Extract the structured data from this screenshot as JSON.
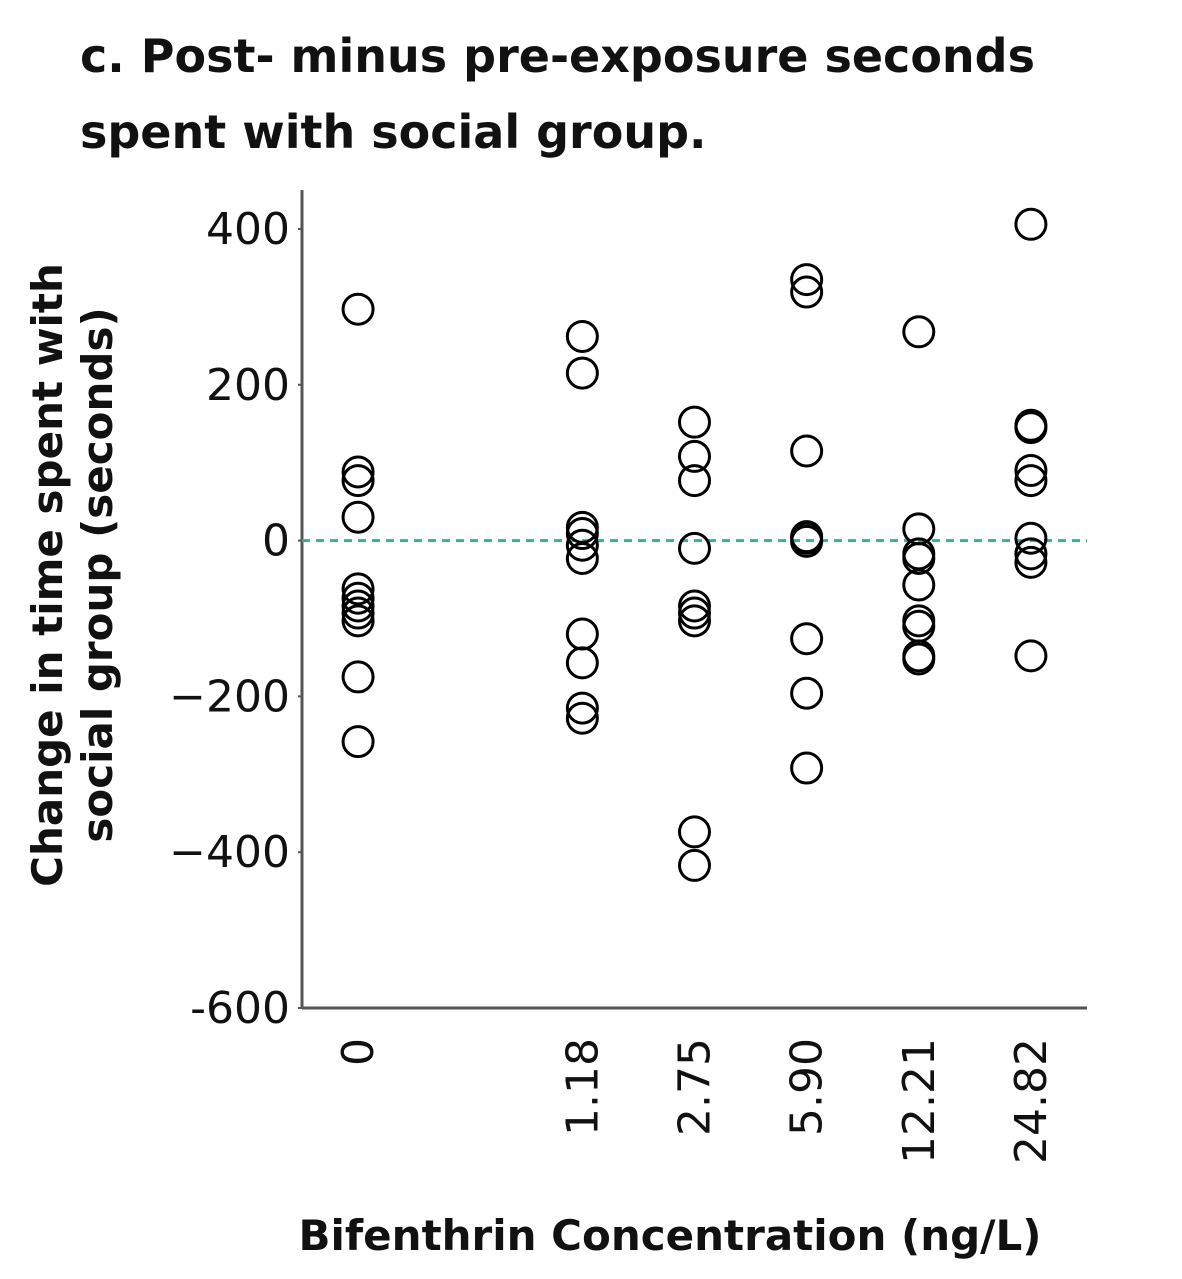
{
  "chart_data": {
    "type": "strip",
    "title": [
      "c. Post- minus pre-exposure seconds",
      "spent with social group."
    ],
    "ylabel": [
      "Change in time spent with",
      "social group (seconds)"
    ],
    "xlabel": "Bifenthrin Concentration (ng/L)",
    "categories": [
      "0",
      null,
      "1.18",
      "2.75",
      "5.90",
      "12.21",
      "24.82"
    ],
    "values": [
      [
        297,
        88,
        77,
        30,
        -62,
        -74,
        -84,
        -93,
        -103,
        -175,
        -258
      ],
      [],
      [
        262,
        215,
        17,
        9,
        -6,
        -23,
        -120,
        -157,
        -215,
        -228
      ],
      [
        152,
        108,
        77,
        -10,
        -84,
        -93,
        -103,
        -374,
        -417
      ],
      [
        335,
        319,
        115,
        5,
        3,
        -1,
        -126,
        -196,
        -292
      ],
      [
        268,
        15,
        -17,
        -23,
        -57,
        -103,
        -110,
        -148,
        -152
      ],
      [
        406,
        148,
        145,
        90,
        77,
        3,
        -17,
        -28,
        -148
      ]
    ],
    "color": "#000000",
    "hline": 0,
    "hline_color": "#4aa89a",
    "ylim": [
      -600,
      450
    ],
    "yticks": [
      400,
      200,
      0,
      {
        "value": -200,
        "label": "−200"
      },
      {
        "value": -400,
        "label": "−400"
      },
      -600
    ]
  }
}
